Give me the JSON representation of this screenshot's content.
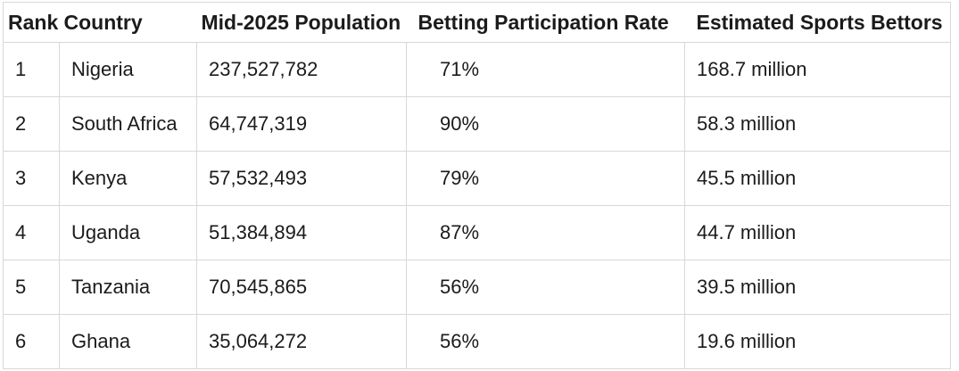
{
  "table": {
    "headers": {
      "rank": "Rank",
      "country": "Country",
      "population": "Mid-2025 Population",
      "rate": "Betting Participation Rate",
      "bettors": "Estimated Sports Bettors"
    },
    "rows": [
      {
        "rank": "1",
        "country": "Nigeria",
        "population": "237,527,782",
        "rate": "71%",
        "bettors": "168.7 million"
      },
      {
        "rank": "2",
        "country": "South Africa",
        "population": "64,747,319",
        "rate": "90%",
        "bettors": "58.3 million"
      },
      {
        "rank": "3",
        "country": "Kenya",
        "population": "57,532,493",
        "rate": "79%",
        "bettors": "45.5 million"
      },
      {
        "rank": "4",
        "country": "Uganda",
        "population": "51,384,894",
        "rate": "87%",
        "bettors": "44.7 million"
      },
      {
        "rank": "5",
        "country": "Tanzania",
        "population": "70,545,865",
        "rate": "56%",
        "bettors": "39.5 million"
      },
      {
        "rank": "6",
        "country": "Ghana",
        "population": "35,064,272",
        "rate": "56%",
        "bettors": "19.6 million"
      }
    ]
  },
  "colors": {
    "text": "#1b1b1b",
    "border": "#d8d8d8",
    "background": "#ffffff"
  },
  "chart_data": {
    "type": "table",
    "title": "",
    "columns": [
      "Rank",
      "Country",
      "Mid-2025 Population",
      "Betting Participation Rate",
      "Estimated Sports Bettors"
    ],
    "rows": [
      [
        1,
        "Nigeria",
        237527782,
        "71%",
        "168.7 million"
      ],
      [
        2,
        "South Africa",
        64747319,
        "90%",
        "58.3 million"
      ],
      [
        3,
        "Kenya",
        57532493,
        "79%",
        "45.5 million"
      ],
      [
        4,
        "Uganda",
        51384894,
        "87%",
        "44.7 million"
      ],
      [
        5,
        "Tanzania",
        70545865,
        "56%",
        "39.5 million"
      ],
      [
        6,
        "Ghana",
        35064272,
        "56%",
        "19.6 million"
      ]
    ],
    "series": [
      {
        "name": "Mid-2025 Population",
        "values": [
          237527782,
          64747319,
          57532493,
          51384894,
          70545865,
          35064272
        ]
      },
      {
        "name": "Betting Participation Rate (%)",
        "values": [
          71,
          90,
          79,
          87,
          56,
          56
        ]
      },
      {
        "name": "Estimated Sports Bettors (millions)",
        "values": [
          168.7,
          58.3,
          45.5,
          44.7,
          39.5,
          19.6
        ]
      }
    ],
    "categories": [
      "Nigeria",
      "South Africa",
      "Kenya",
      "Uganda",
      "Tanzania",
      "Ghana"
    ]
  }
}
